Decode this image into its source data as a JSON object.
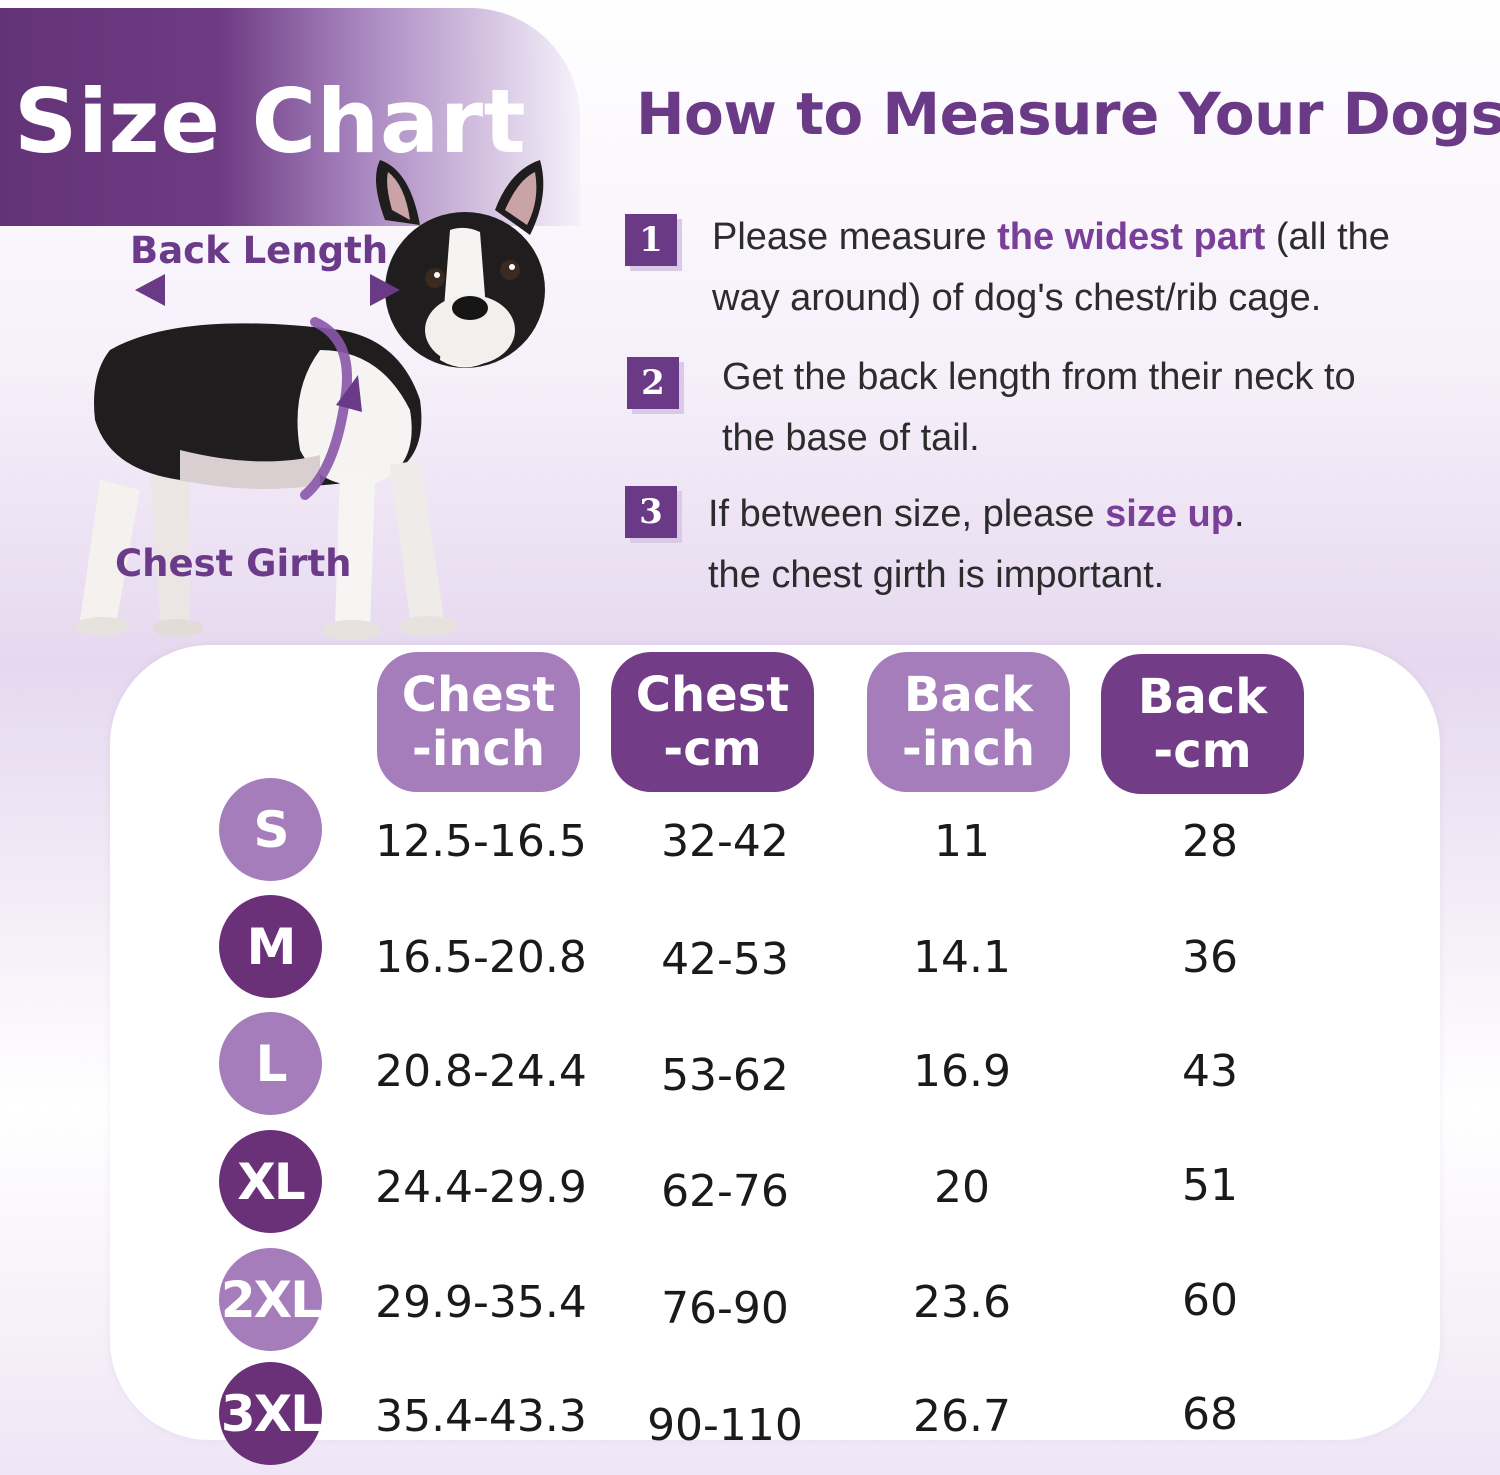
{
  "title": "Size Chart",
  "dog_labels": {
    "back_length": "Back Length",
    "chest_girth": "Chest Girth"
  },
  "instructions": {
    "heading": "How to Measure Your Dogs?",
    "steps": [
      {
        "number": "1",
        "before": "Please measure ",
        "highlight": "the widest part",
        "after_line1": " (all the",
        "line2": "way around) of dog's chest/rib cage."
      },
      {
        "number": "2",
        "line1": "Get the back length from their neck to",
        "line2": "the base of tail."
      },
      {
        "number": "3",
        "before": "If between size, please ",
        "highlight": "size up",
        "after_line1": ".",
        "line2": "the chest girth is  important."
      }
    ]
  },
  "table": {
    "headers": [
      {
        "line1": "Chest",
        "line2": "-inch"
      },
      {
        "line1": "Chest",
        "line2": "-cm"
      },
      {
        "line1": "Back",
        "line2": "-inch"
      },
      {
        "line1": "Back",
        "line2": "-cm"
      }
    ],
    "rows": [
      {
        "size": "S",
        "chest_inch": "12.5-16.5",
        "chest_cm": "32-42",
        "back_inch": "11",
        "back_cm": "28"
      },
      {
        "size": "M",
        "chest_inch": "16.5-20.8",
        "chest_cm": "42-53",
        "back_inch": "14.1",
        "back_cm": "36"
      },
      {
        "size": "L",
        "chest_inch": "20.8-24.4",
        "chest_cm": "53-62",
        "back_inch": "16.9",
        "back_cm": "43"
      },
      {
        "size": "XL",
        "chest_inch": "24.4-29.9",
        "chest_cm": "62-76",
        "back_inch": "20",
        "back_cm": "51"
      },
      {
        "size": "2XL",
        "chest_inch": "29.9-35.4",
        "chest_cm": "76-90",
        "back_inch": "23.6",
        "back_cm": "60"
      },
      {
        "size": "3XL",
        "chest_inch": "35.4-43.3",
        "chest_cm": "90-110",
        "back_inch": "26.7",
        "back_cm": "68"
      }
    ]
  },
  "colors": {
    "primary_purple": "#6a3a86",
    "light_purple": "#a57dbb",
    "dark_purple": "#723d86"
  }
}
